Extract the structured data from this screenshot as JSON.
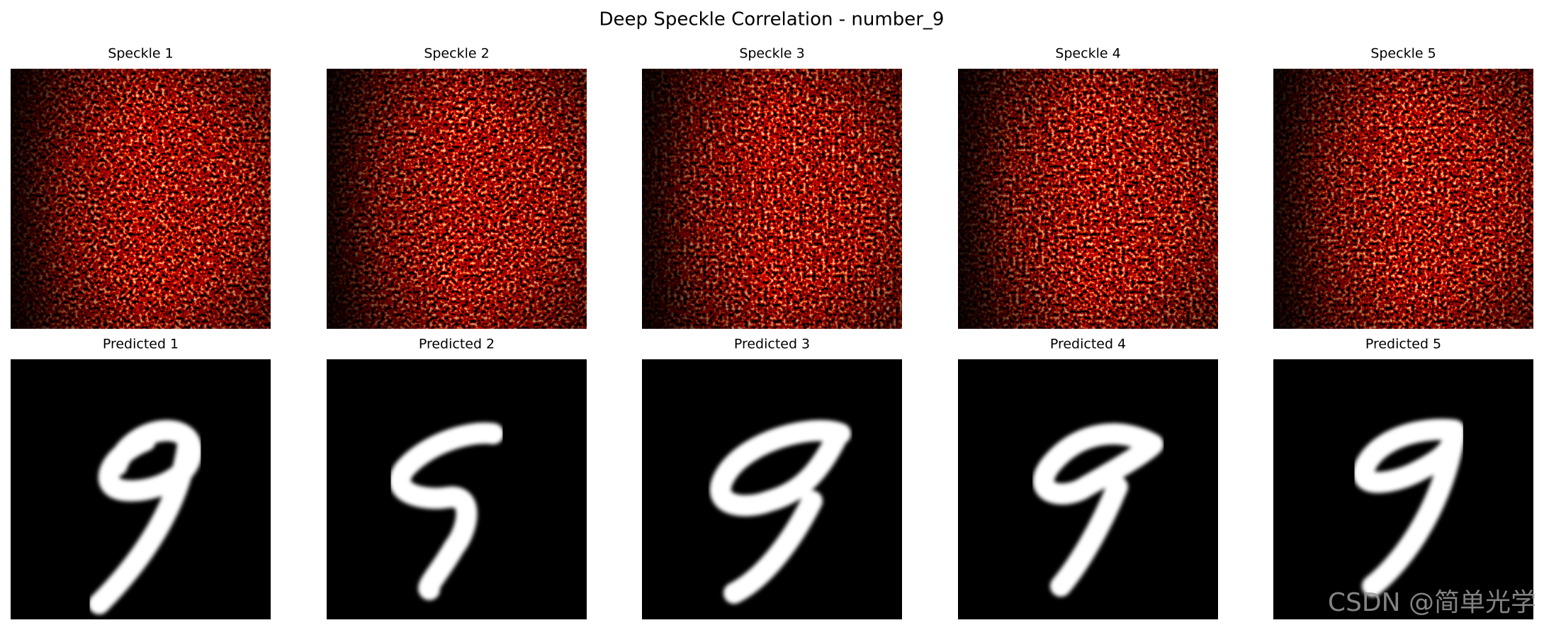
{
  "title": "Deep Speckle Correlation - number_9",
  "rows": [
    {
      "panels": [
        "Speckle 1",
        "Speckle 2",
        "Speckle 3",
        "Speckle 4",
        "Speckle 5"
      ]
    },
    {
      "panels": [
        "Predicted 1",
        "Predicted 2",
        "Predicted 3",
        "Predicted 4",
        "Predicted 5"
      ]
    }
  ],
  "watermark": "CSDN @简单光学"
}
